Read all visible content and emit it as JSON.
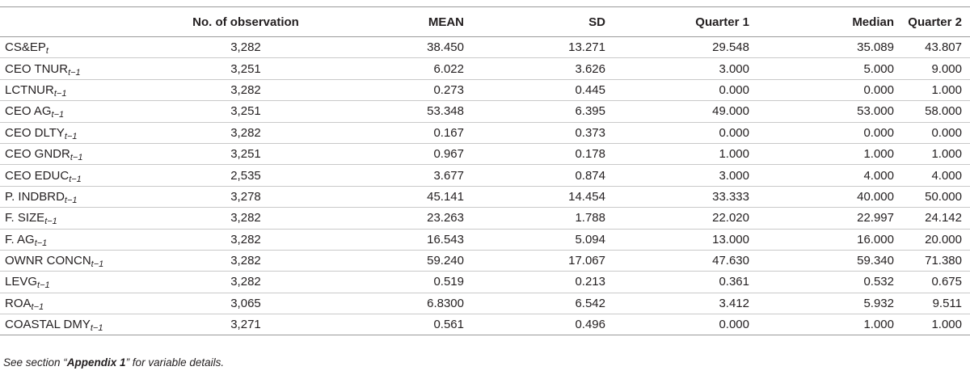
{
  "table": {
    "headers": [
      "",
      "No. of observation",
      "MEAN",
      "SD",
      "Quarter 1",
      "Median",
      "Quarter 2"
    ],
    "rows": [
      {
        "var": "CS&EP",
        "sub": "t",
        "obs": "3,282",
        "mean": "38.450",
        "sd": "13.271",
        "q1": "29.548",
        "median": "35.089",
        "q2": "43.807"
      },
      {
        "var": "CEO TNUR",
        "sub": "t−1",
        "obs": "3,251",
        "mean": "6.022",
        "sd": "3.626",
        "q1": "3.000",
        "median": "5.000",
        "q2": "9.000"
      },
      {
        "var": "LCTNUR",
        "sub": "t−1",
        "obs": "3,282",
        "mean": "0.273",
        "sd": "0.445",
        "q1": "0.000",
        "median": "0.000",
        "q2": "1.000"
      },
      {
        "var": "CEO AG",
        "sub": "t−1",
        "obs": "3,251",
        "mean": "53.348",
        "sd": "6.395",
        "q1": "49.000",
        "median": "53.000",
        "q2": "58.000"
      },
      {
        "var": "CEO DLTY",
        "sub": "t−1",
        "obs": "3,282",
        "mean": "0.167",
        "sd": "0.373",
        "q1": "0.000",
        "median": "0.000",
        "q2": "0.000"
      },
      {
        "var": "CEO GNDR",
        "sub": "t−1",
        "obs": "3,251",
        "mean": "0.967",
        "sd": "0.178",
        "q1": "1.000",
        "median": "1.000",
        "q2": "1.000"
      },
      {
        "var": "CEO EDUC",
        "sub": "t−1",
        "obs": "2,535",
        "mean": "3.677",
        "sd": "0.874",
        "q1": "3.000",
        "median": "4.000",
        "q2": "4.000"
      },
      {
        "var": "P. INDBRD",
        "sub": "t−1",
        "obs": "3,278",
        "mean": "45.141",
        "sd": "14.454",
        "q1": "33.333",
        "median": "40.000",
        "q2": "50.000"
      },
      {
        "var": "F. SIZE",
        "sub": "t−1",
        "obs": "3,282",
        "mean": "23.263",
        "sd": "1.788",
        "q1": "22.020",
        "median": "22.997",
        "q2": "24.142"
      },
      {
        "var": "F. AG",
        "sub": "t−1",
        "obs": "3,282",
        "mean": "16.543",
        "sd": "5.094",
        "q1": "13.000",
        "median": "16.000",
        "q2": "20.000"
      },
      {
        "var": "OWNR CONCN",
        "sub": "t−1",
        "obs": "3,282",
        "mean": "59.240",
        "sd": "17.067",
        "q1": "47.630",
        "median": "59.340",
        "q2": "71.380"
      },
      {
        "var": "LEVG",
        "sub": "t−1",
        "obs": "3,282",
        "mean": "0.519",
        "sd": "0.213",
        "q1": "0.361",
        "median": "0.532",
        "q2": "0.675"
      },
      {
        "var": "ROA",
        "sub": "t−1",
        "obs": "3,065",
        "mean": "6.8300",
        "sd": "6.542",
        "q1": "3.412",
        "median": "5.932",
        "q2": "9.511"
      },
      {
        "var": "COASTAL DMY",
        "sub": "t−1",
        "obs": "3,271",
        "mean": "0.561",
        "sd": "0.496",
        "q1": "0.000",
        "median": "1.000",
        "q2": "1.000"
      }
    ]
  },
  "footnote": {
    "prefix": "See section “",
    "emphasis": "Appendix 1",
    "suffix": "” for variable details."
  }
}
